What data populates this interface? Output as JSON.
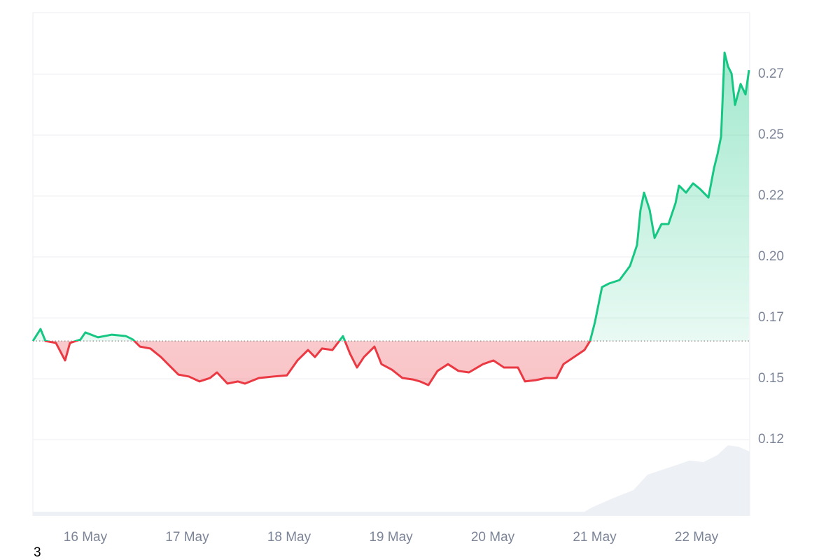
{
  "chart_data": {
    "type": "line",
    "footnote": "3",
    "xlim": [
      15.485,
      22.522
    ],
    "xticks": [
      {
        "value": 16,
        "label": "16 May"
      },
      {
        "value": 17,
        "label": "17 May"
      },
      {
        "value": 18,
        "label": "18 May"
      },
      {
        "value": 19,
        "label": "19 May"
      },
      {
        "value": 20,
        "label": "20 May"
      },
      {
        "value": 21,
        "label": "21 May"
      },
      {
        "value": 22,
        "label": "22 May"
      }
    ],
    "ylim": [
      0.0937,
      0.3003
    ],
    "yticks": [
      {
        "value": 0.125,
        "label": "0.12"
      },
      0.15,
      {
        "value": 0.175,
        "label": "0.17"
      },
      {
        "value": 0.2,
        "label": "0.20"
      },
      {
        "value": 0.225,
        "label": "0.22"
      },
      0.25,
      {
        "value": 0.275,
        "label": "0.27"
      }
    ],
    "grid": true,
    "baseline": 0.1655,
    "up_color": "#16c784",
    "down_color": "#ea3943",
    "x": [
      15.485,
      15.56,
      15.608,
      15.711,
      15.801,
      15.849,
      15.952,
      16.0,
      16.124,
      16.261,
      16.399,
      16.467,
      16.536,
      16.639,
      16.742,
      16.811,
      16.914,
      17.017,
      17.12,
      17.223,
      17.292,
      17.395,
      17.498,
      17.567,
      17.704,
      17.842,
      17.979,
      18.082,
      18.186,
      18.254,
      18.323,
      18.426,
      18.529,
      18.598,
      18.667,
      18.735,
      18.838,
      18.907,
      19.01,
      19.113,
      19.216,
      19.285,
      19.368,
      19.457,
      19.56,
      19.663,
      19.766,
      19.904,
      20.007,
      20.11,
      20.247,
      20.316,
      20.419,
      20.522,
      20.625,
      20.694,
      20.797,
      20.9,
      20.955,
      21.003,
      21.072,
      21.141,
      21.244,
      21.347,
      21.416,
      21.45,
      21.485,
      21.54,
      21.588,
      21.656,
      21.725,
      21.794,
      21.828,
      21.897,
      21.966,
      22.034,
      22.117,
      22.172,
      22.206,
      22.241,
      22.275,
      22.309,
      22.344,
      22.378,
      22.433,
      22.481,
      22.515
    ],
    "values": [
      0.1655,
      0.1704,
      0.1655,
      0.1647,
      0.1575,
      0.1647,
      0.1661,
      0.169,
      0.167,
      0.1681,
      0.1675,
      0.1661,
      0.1632,
      0.1624,
      0.1589,
      0.156,
      0.1517,
      0.1509,
      0.1489,
      0.1503,
      0.1526,
      0.148,
      0.1489,
      0.148,
      0.1503,
      0.1509,
      0.1514,
      0.1575,
      0.1618,
      0.1589,
      0.1624,
      0.1618,
      0.1675,
      0.1603,
      0.1546,
      0.1589,
      0.1632,
      0.156,
      0.1537,
      0.1503,
      0.1497,
      0.1489,
      0.1474,
      0.1532,
      0.156,
      0.1532,
      0.1526,
      0.156,
      0.1575,
      0.1546,
      0.1546,
      0.1489,
      0.1494,
      0.1503,
      0.1503,
      0.156,
      0.1589,
      0.1618,
      0.1655,
      0.1733,
      0.1876,
      0.1891,
      0.1905,
      0.1963,
      0.2049,
      0.2193,
      0.2264,
      0.2193,
      0.2078,
      0.2135,
      0.2135,
      0.2221,
      0.2293,
      0.2264,
      0.2302,
      0.2279,
      0.2244,
      0.2365,
      0.2422,
      0.2494,
      0.2839,
      0.2782,
      0.2753,
      0.2624,
      0.271,
      0.2667,
      0.2767
    ],
    "volume": {
      "color": "#edf0f4",
      "x": [
        15.485,
        20.9,
        20.97,
        21.175,
        21.381,
        21.519,
        21.725,
        21.931,
        22.069,
        22.206,
        22.309,
        22.412,
        22.522
      ],
      "values": [
        0.0954,
        0.0954,
        0.0971,
        0.1009,
        0.1043,
        0.1106,
        0.1135,
        0.1164,
        0.1158,
        0.1187,
        0.1227,
        0.1221,
        0.1201
      ]
    }
  }
}
